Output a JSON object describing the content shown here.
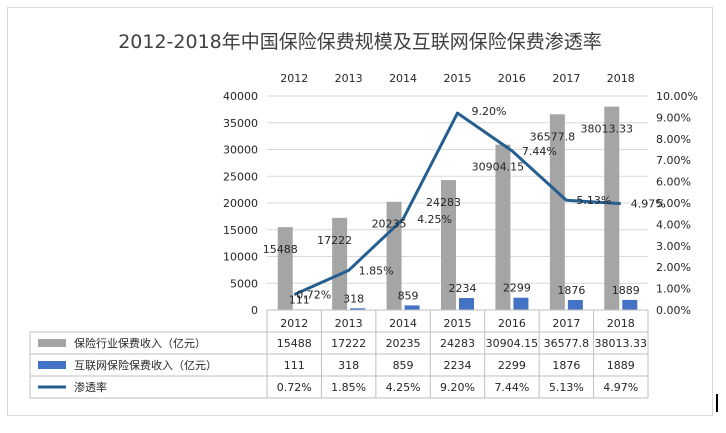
{
  "chart_data": {
    "type": "bar",
    "title": "2012-2018年中国保险保费规模及互联网保险保费渗透率",
    "categories": [
      "2012",
      "2013",
      "2014",
      "2015",
      "2016",
      "2017",
      "2018"
    ],
    "series": [
      {
        "name": "保险行业保费收入（亿元）",
        "kind": "bar",
        "axis": "left",
        "color": "#a5a5a5",
        "values": [
          15488,
          17222,
          20235,
          24283,
          30904.15,
          36577.8,
          38013.33
        ],
        "labels": [
          "15488",
          "17222",
          "20235",
          "24283",
          "30904.15",
          "36577.8",
          "38013.33"
        ]
      },
      {
        "name": "互联网保险保费收入（亿元）",
        "kind": "bar",
        "axis": "left",
        "color": "#4472c4",
        "values": [
          111,
          318,
          859,
          2234,
          2299,
          1876,
          1889
        ],
        "labels": [
          "111",
          "318",
          "859",
          "2234",
          "2299",
          "1876",
          "1889"
        ]
      },
      {
        "name": "渗透率",
        "kind": "line",
        "axis": "right",
        "color": "#255e91",
        "values": [
          0.72,
          1.85,
          4.25,
          9.2,
          7.44,
          5.13,
          4.97
        ],
        "labels": [
          "0.72%",
          "1.85%",
          "4.25%",
          "9.20%",
          "7.44%",
          "5.13%",
          "4.97%"
        ]
      }
    ],
    "y_left": {
      "ylim": [
        0,
        40000
      ],
      "ticks": [
        "0",
        "5000",
        "10000",
        "15000",
        "20000",
        "25000",
        "30000",
        "35000",
        "40000"
      ]
    },
    "y_right": {
      "ylim": [
        0,
        10
      ],
      "unit": "%",
      "ticks": [
        "0.00%",
        "1.00%",
        "2.00%",
        "3.00%",
        "4.00%",
        "5.00%",
        "6.00%",
        "7.00%",
        "8.00%",
        "9.00%",
        "10.00%"
      ]
    },
    "grid": true,
    "legend": "data-table",
    "data_table": true
  }
}
